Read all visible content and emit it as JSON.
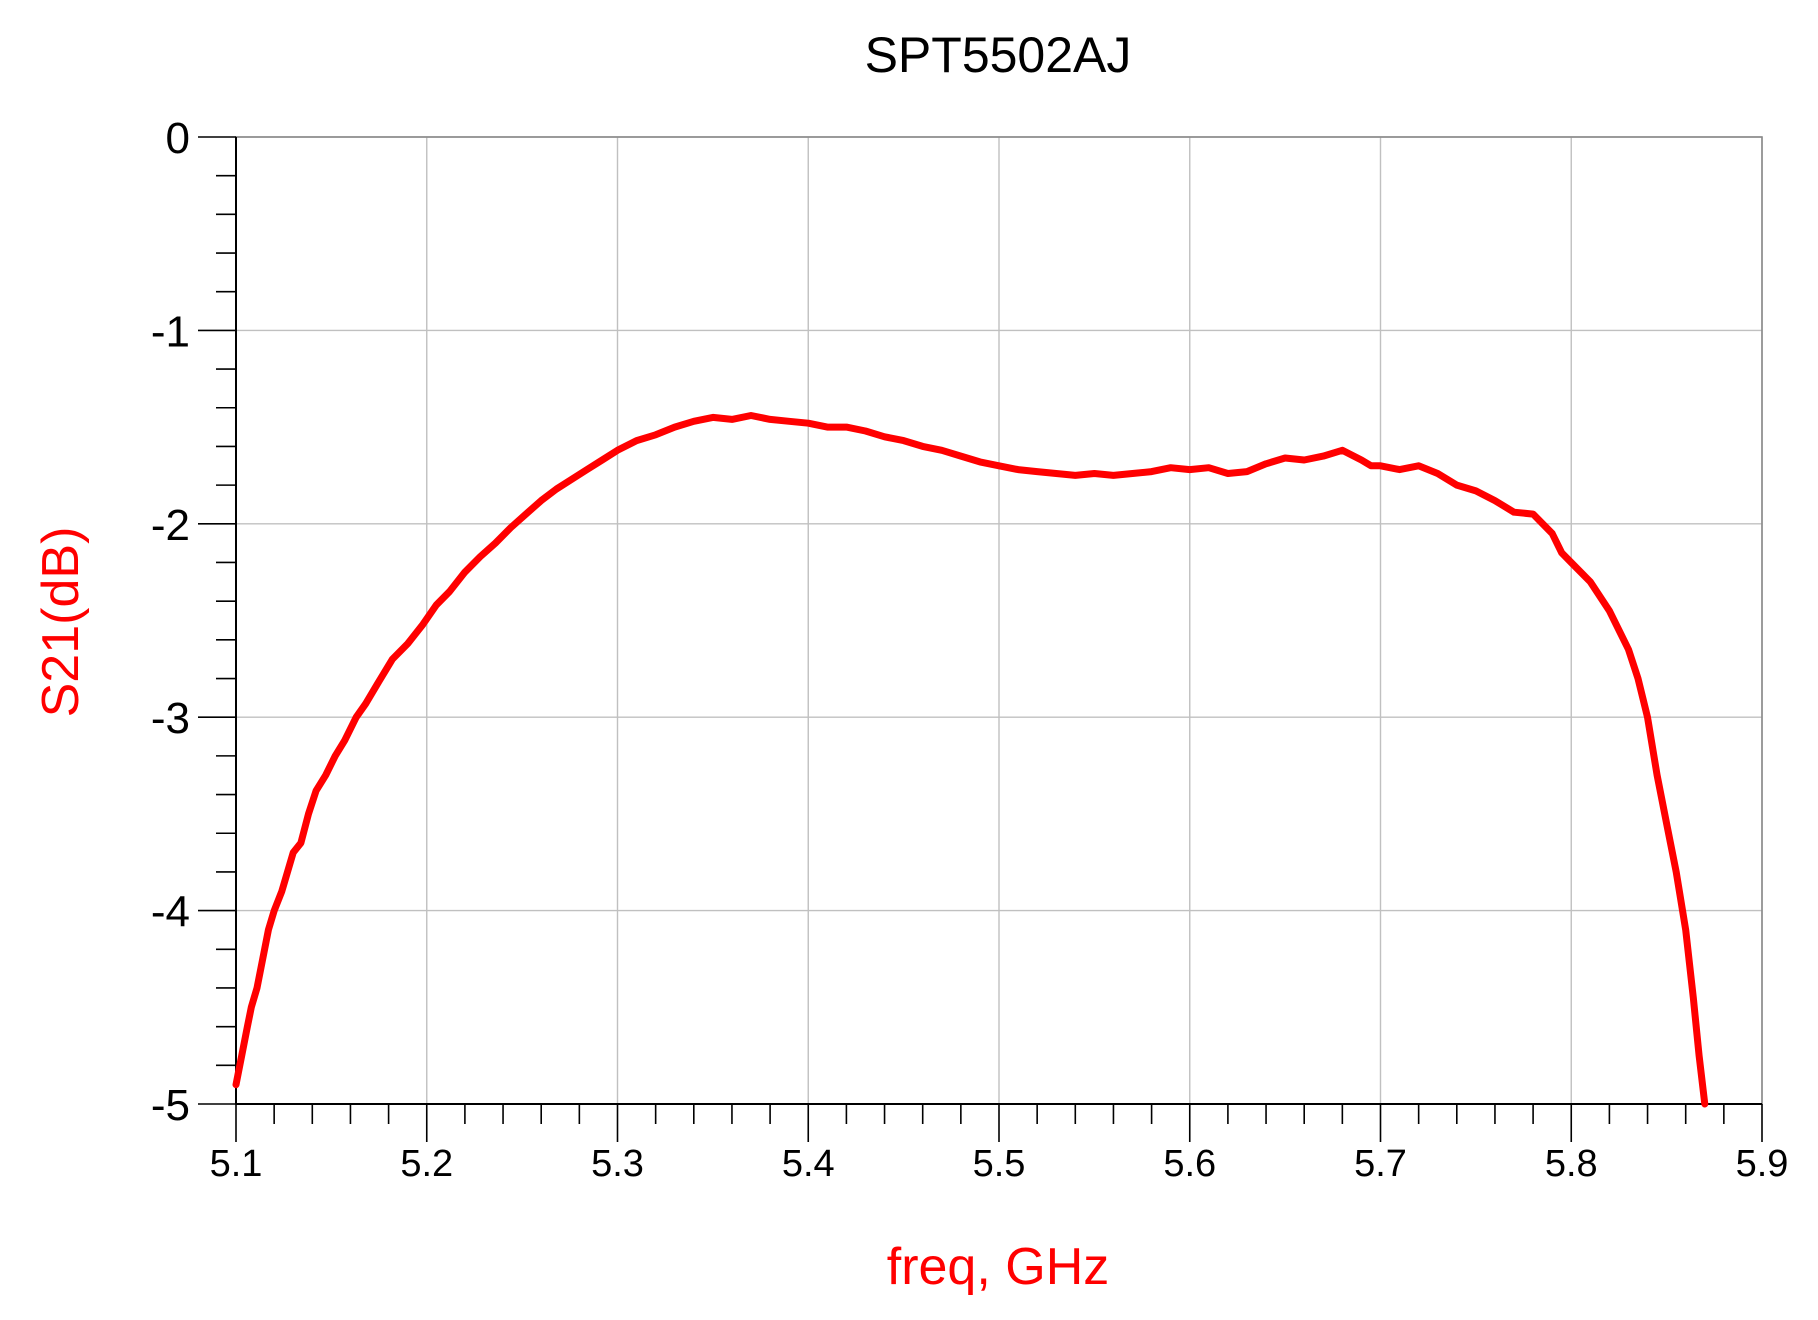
{
  "chart_data": {
    "type": "line",
    "title": "SPT5502AJ",
    "xlabel": "freq, GHz",
    "ylabel": "S21(dB)",
    "xlim": [
      5.1,
      5.9
    ],
    "ylim": [
      -5,
      0
    ],
    "xticks": [
      "5.1",
      "5.2",
      "5.3",
      "5.4",
      "5.5",
      "5.6",
      "5.7",
      "5.8",
      "5.9"
    ],
    "yticks": [
      "0",
      "-1",
      "-2",
      "-3",
      "-4",
      "-5"
    ],
    "grid": true,
    "colors": {
      "series": "#ff0000",
      "labels": "#ff0000",
      "text": "#000000",
      "grid": "#c0c0c0"
    },
    "series": [
      {
        "color": "#ff0000",
        "x": [
          5.1,
          5.103,
          5.106,
          5.108,
          5.111,
          5.114,
          5.117,
          5.12,
          5.124,
          5.13,
          5.134,
          5.138,
          5.142,
          5.147,
          5.152,
          5.157,
          5.163,
          5.168,
          5.174,
          5.182,
          5.19,
          5.198,
          5.205,
          5.212,
          5.22,
          5.228,
          5.236,
          5.244,
          5.252,
          5.26,
          5.268,
          5.276,
          5.284,
          5.292,
          5.3,
          5.31,
          5.32,
          5.33,
          5.34,
          5.35,
          5.36,
          5.37,
          5.38,
          5.39,
          5.4,
          5.41,
          5.42,
          5.43,
          5.44,
          5.45,
          5.46,
          5.47,
          5.48,
          5.49,
          5.5,
          5.51,
          5.52,
          5.53,
          5.54,
          5.55,
          5.56,
          5.57,
          5.58,
          5.59,
          5.6,
          5.61,
          5.62,
          5.63,
          5.64,
          5.65,
          5.66,
          5.67,
          5.68,
          5.69,
          5.695,
          5.7,
          5.71,
          5.72,
          5.73,
          5.74,
          5.75,
          5.76,
          5.77,
          5.78,
          5.79,
          5.795,
          5.8,
          5.81,
          5.82,
          5.83,
          5.835,
          5.84,
          5.845,
          5.85,
          5.855,
          5.86,
          5.864,
          5.867,
          5.87
        ],
        "y": [
          -4.9,
          -4.75,
          -4.6,
          -4.5,
          -4.4,
          -4.25,
          -4.1,
          -4.0,
          -3.9,
          -3.7,
          -3.65,
          -3.5,
          -3.38,
          -3.3,
          -3.2,
          -3.12,
          -3.0,
          -2.93,
          -2.83,
          -2.7,
          -2.62,
          -2.52,
          -2.42,
          -2.35,
          -2.25,
          -2.17,
          -2.1,
          -2.02,
          -1.95,
          -1.88,
          -1.82,
          -1.77,
          -1.72,
          -1.67,
          -1.62,
          -1.57,
          -1.54,
          -1.5,
          -1.47,
          -1.45,
          -1.46,
          -1.44,
          -1.46,
          -1.47,
          -1.48,
          -1.5,
          -1.5,
          -1.52,
          -1.55,
          -1.57,
          -1.6,
          -1.62,
          -1.65,
          -1.68,
          -1.7,
          -1.72,
          -1.73,
          -1.74,
          -1.75,
          -1.74,
          -1.75,
          -1.74,
          -1.73,
          -1.71,
          -1.72,
          -1.71,
          -1.74,
          -1.73,
          -1.69,
          -1.66,
          -1.67,
          -1.65,
          -1.62,
          -1.67,
          -1.7,
          -1.7,
          -1.72,
          -1.7,
          -1.74,
          -1.8,
          -1.83,
          -1.88,
          -1.94,
          -1.95,
          -2.05,
          -2.15,
          -2.2,
          -2.3,
          -2.45,
          -2.65,
          -2.8,
          -3.0,
          -3.3,
          -3.55,
          -3.8,
          -4.1,
          -4.45,
          -4.75,
          -5.0
        ]
      }
    ]
  }
}
